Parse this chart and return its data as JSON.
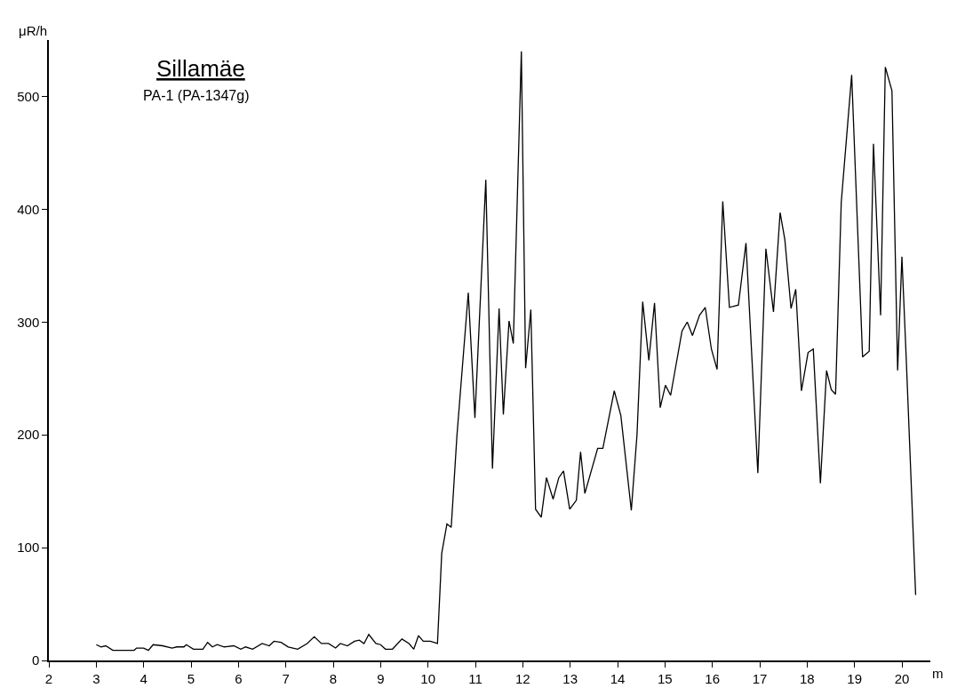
{
  "chart_data": {
    "type": "line",
    "title": "Sillamäe",
    "subtitle": "PA-1 (PA-1347g)",
    "ylabel": "μR/h",
    "xlabel": "m",
    "x": [
      3.0,
      3.1,
      3.2,
      3.35,
      3.6,
      3.8,
      3.85,
      4.0,
      4.1,
      4.2,
      4.4,
      4.6,
      4.7,
      4.85,
      4.9,
      5.05,
      5.25,
      5.35,
      5.45,
      5.55,
      5.7,
      5.9,
      6.05,
      6.15,
      6.3,
      6.5,
      6.65,
      6.75,
      6.9,
      7.05,
      7.25,
      7.45,
      7.6,
      7.75,
      7.9,
      8.05,
      8.15,
      8.3,
      8.45,
      8.55,
      8.65,
      8.75,
      8.9,
      9.0,
      9.1,
      9.25,
      9.45,
      9.6,
      9.7,
      9.8,
      9.9,
      10.05,
      10.2,
      10.29,
      10.4,
      10.49,
      10.61,
      10.85,
      10.99,
      11.22,
      11.36,
      11.5,
      11.59,
      11.71,
      11.8,
      11.97,
      12.06,
      12.17,
      12.27,
      12.39,
      12.5,
      12.64,
      12.76,
      12.86,
      12.99,
      13.13,
      13.22,
      13.31,
      13.58,
      13.69,
      13.93,
      14.07,
      14.29,
      14.41,
      14.53,
      14.66,
      14.78,
      14.9,
      15.01,
      15.12,
      15.36,
      15.47,
      15.58,
      15.73,
      15.85,
      15.98,
      16.1,
      16.22,
      16.36,
      16.55,
      16.71,
      16.96,
      17.13,
      17.29,
      17.43,
      17.53,
      17.66,
      17.76,
      17.88,
      18.02,
      18.13,
      18.28,
      18.41,
      18.51,
      18.6,
      18.72,
      18.94,
      19.17,
      19.31,
      19.4,
      19.55,
      19.65,
      19.79,
      19.91,
      20.0,
      20.09,
      20.29
    ],
    "series": [
      {
        "color": "#000000",
        "values": [
          14,
          12,
          13,
          9,
          9,
          9,
          11,
          11,
          9,
          14,
          13,
          11,
          12,
          12,
          14,
          10,
          10,
          16,
          12,
          14,
          12,
          13,
          10,
          12,
          10,
          15,
          13,
          17,
          16,
          12,
          10,
          15,
          21,
          15,
          15,
          11,
          15,
          13,
          17,
          18,
          15,
          23,
          15,
          14,
          10,
          10,
          19,
          15,
          10,
          22,
          17,
          17,
          15,
          95,
          121,
          118,
          199,
          326,
          215,
          426,
          170,
          312,
          218,
          301,
          281,
          540,
          259,
          311,
          134,
          127,
          162,
          143,
          162,
          168,
          134,
          142,
          185,
          148,
          188,
          188,
          239,
          217,
          133,
          200,
          318,
          266,
          317,
          224,
          244,
          235,
          292,
          300,
          288,
          306,
          313,
          276,
          258,
          407,
          313,
          315,
          370,
          166,
          365,
          309,
          397,
          373,
          312,
          329,
          239,
          273,
          276,
          157,
          257,
          240,
          236,
          406,
          519,
          269,
          274,
          458,
          306,
          526,
          505,
          257,
          358,
          269,
          58
        ]
      }
    ],
    "xlim": [
      2,
      20.6
    ],
    "xticks": [
      2,
      3,
      4,
      5,
      6,
      7,
      8,
      9,
      10,
      11,
      12,
      13,
      14,
      15,
      16,
      17,
      18,
      19,
      20
    ],
    "ylim": [
      0,
      550
    ],
    "yticks": [
      0,
      100,
      200,
      300,
      400,
      500
    ],
    "marker": "none",
    "line_style": "solid"
  }
}
